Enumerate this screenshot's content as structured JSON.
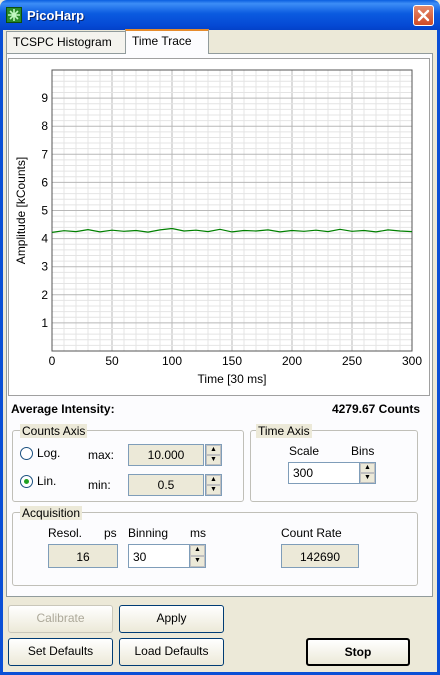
{
  "window": {
    "title": "PicoHarp"
  },
  "tabs": [
    {
      "label": "TCSPC Histogram",
      "active": false
    },
    {
      "label": "Time Trace",
      "active": true
    }
  ],
  "chart_data": {
    "type": "line",
    "title": "",
    "xlabel": "Time [30 ms]",
    "ylabel": "Amplitude [kCounts]",
    "xlim": [
      0,
      300
    ],
    "ylim": [
      0,
      10
    ],
    "xticks": [
      "0",
      "50",
      "100",
      "150",
      "200",
      "250",
      "300"
    ],
    "yticks": [
      "1",
      "2",
      "3",
      "4",
      "5",
      "6",
      "7",
      "8",
      "9"
    ],
    "grid": true,
    "series": [
      {
        "color": "#008000",
        "x": [
          0,
          10,
          20,
          30,
          40,
          50,
          60,
          70,
          80,
          90,
          100,
          110,
          120,
          130,
          140,
          150,
          160,
          170,
          180,
          190,
          200,
          210,
          220,
          230,
          240,
          250,
          260,
          270,
          280,
          290,
          300
        ],
        "y": [
          4.22,
          4.28,
          4.25,
          4.32,
          4.24,
          4.3,
          4.26,
          4.29,
          4.23,
          4.31,
          4.36,
          4.27,
          4.3,
          4.25,
          4.33,
          4.24,
          4.29,
          4.27,
          4.31,
          4.24,
          4.29,
          4.26,
          4.3,
          4.25,
          4.33,
          4.26,
          4.29,
          4.24,
          4.31,
          4.27,
          4.25
        ]
      }
    ]
  },
  "average_intensity": {
    "label": "Average Intensity:",
    "value": "4279.67 Counts"
  },
  "counts_axis": {
    "title": "Counts Axis",
    "log_label": "Log.",
    "lin_label": "Lin.",
    "selected": "Lin.",
    "max_label": "max:",
    "max_value": "10.000",
    "min_label": "min:",
    "min_value": "0.5"
  },
  "time_axis": {
    "title": "Time Axis",
    "scale_label": "Scale",
    "bins_label": "Bins",
    "value": "300"
  },
  "acquisition": {
    "title": "Acquisition",
    "resol_label": "Resol.",
    "resol_unit": "ps",
    "resol_value": "16",
    "binning_label": "Binning",
    "binning_unit": "ms",
    "binning_value": "30",
    "count_rate_label": "Count Rate",
    "count_rate_value": "142690"
  },
  "buttons": {
    "calibrate": "Calibrate",
    "apply": "Apply",
    "set_defaults": "Set Defaults",
    "load_defaults": "Load Defaults",
    "stop": "Stop"
  },
  "icons": {
    "app": "picoharp-app-icon",
    "close": "close-icon"
  }
}
